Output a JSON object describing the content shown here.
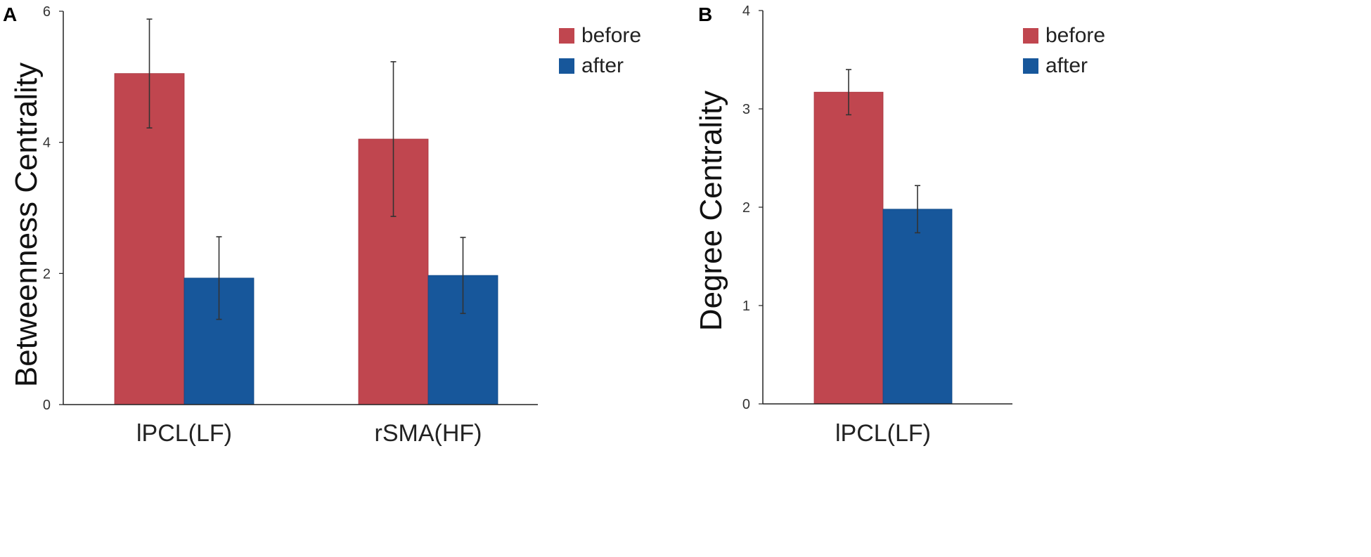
{
  "colors": {
    "before": "#C0464F",
    "after": "#17579B",
    "axis": "#222222",
    "error": "#333333"
  },
  "chart_data": [
    {
      "type": "bar",
      "panel_label": "A",
      "title": "",
      "xlabel": "",
      "ylabel": "Betweenness Centrality",
      "ylim": [
        0,
        6
      ],
      "yticks": [
        "0",
        "2",
        "4",
        "6"
      ],
      "categories": [
        "lPCL(LF)",
        "rSMA(HF)"
      ],
      "series": [
        {
          "name": "before",
          "values": [
            5.05,
            4.05
          ],
          "errors": [
            0.83,
            1.18
          ]
        },
        {
          "name": "after",
          "values": [
            1.93,
            1.97
          ],
          "errors": [
            0.63,
            0.58
          ]
        }
      ],
      "legend": {
        "position": "top-right",
        "entries": [
          "before",
          "after"
        ]
      }
    },
    {
      "type": "bar",
      "panel_label": "B",
      "title": "",
      "xlabel": "",
      "ylabel": "Degree Centrality",
      "ylim": [
        0,
        4
      ],
      "yticks": [
        "0",
        "1",
        "2",
        "3",
        "4"
      ],
      "categories": [
        "lPCL(LF)"
      ],
      "series": [
        {
          "name": "before",
          "values": [
            3.17
          ],
          "errors": [
            0.23
          ]
        },
        {
          "name": "after",
          "values": [
            1.98
          ],
          "errors": [
            0.24
          ]
        }
      ],
      "legend": {
        "position": "top-right",
        "entries": [
          "before",
          "after"
        ]
      }
    }
  ]
}
